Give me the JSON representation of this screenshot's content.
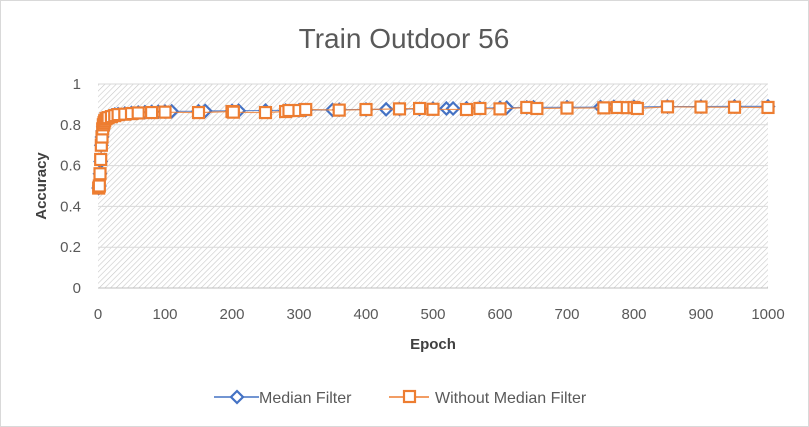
{
  "chart_data": {
    "type": "scatter",
    "title": "Train Outdoor 56",
    "xlabel": "Epoch",
    "ylabel": "Accuracy",
    "xlim": [
      0,
      1000
    ],
    "ylim": [
      0,
      1
    ],
    "xticks": [
      "0",
      "100",
      "200",
      "300",
      "400",
      "500",
      "600",
      "700",
      "800",
      "900",
      "1000"
    ],
    "yticks": [
      "0",
      "0.2",
      "0.4",
      "0.6",
      "0.8",
      "1"
    ],
    "grid": "diagonal hatched plot area",
    "legend_position": "bottom",
    "series": [
      {
        "name": "Median Filter",
        "marker": "diamond",
        "color": "#4472C4",
        "x": [
          1,
          2,
          3,
          4,
          5,
          6,
          7,
          8,
          9,
          10,
          12,
          14,
          16,
          18,
          20,
          25,
          30,
          40,
          50,
          60,
          70,
          80,
          90,
          100,
          110,
          150,
          160,
          200,
          210,
          250,
          280,
          300,
          310,
          350,
          360,
          400,
          430,
          450,
          480,
          500,
          520,
          530,
          550,
          570,
          600,
          610,
          640,
          650,
          700,
          750,
          770,
          800,
          850,
          900,
          950,
          1000
        ],
        "y": [
          0.49,
          0.5,
          0.56,
          0.62,
          0.7,
          0.74,
          0.77,
          0.79,
          0.8,
          0.81,
          0.82,
          0.83,
          0.835,
          0.84,
          0.845,
          0.85,
          0.852,
          0.855,
          0.858,
          0.86,
          0.862,
          0.863,
          0.864,
          0.865,
          0.866,
          0.866,
          0.868,
          0.868,
          0.869,
          0.87,
          0.87,
          0.871,
          0.872,
          0.873,
          0.874,
          0.875,
          0.876,
          0.877,
          0.878,
          0.879,
          0.88,
          0.88,
          0.881,
          0.882,
          0.883,
          0.884,
          0.885,
          0.886,
          0.886,
          0.887,
          0.888,
          0.888,
          0.889,
          0.889,
          0.89,
          0.89
        ]
      },
      {
        "name": "Without Median Filter",
        "marker": "square",
        "color": "#ED7D31",
        "x": [
          1,
          2,
          3,
          4,
          5,
          6,
          7,
          8,
          9,
          10,
          12,
          15,
          20,
          25,
          30,
          40,
          50,
          60,
          80,
          100,
          150,
          200,
          202,
          250,
          280,
          285,
          300,
          310,
          360,
          400,
          450,
          480,
          500,
          550,
          570,
          600,
          640,
          655,
          700,
          755,
          775,
          790,
          800,
          805,
          850,
          900,
          950,
          1000
        ],
        "y": [
          0.49,
          0.5,
          0.56,
          0.63,
          0.7,
          0.74,
          0.78,
          0.8,
          0.81,
          0.82,
          0.83,
          0.835,
          0.84,
          0.845,
          0.85,
          0.852,
          0.855,
          0.858,
          0.86,
          0.862,
          0.86,
          0.865,
          0.862,
          0.86,
          0.865,
          0.87,
          0.87,
          0.875,
          0.872,
          0.875,
          0.878,
          0.88,
          0.876,
          0.875,
          0.88,
          0.878,
          0.885,
          0.88,
          0.882,
          0.883,
          0.885,
          0.884,
          0.885,
          0.88,
          0.888,
          0.887,
          0.886,
          0.885
        ]
      }
    ]
  }
}
